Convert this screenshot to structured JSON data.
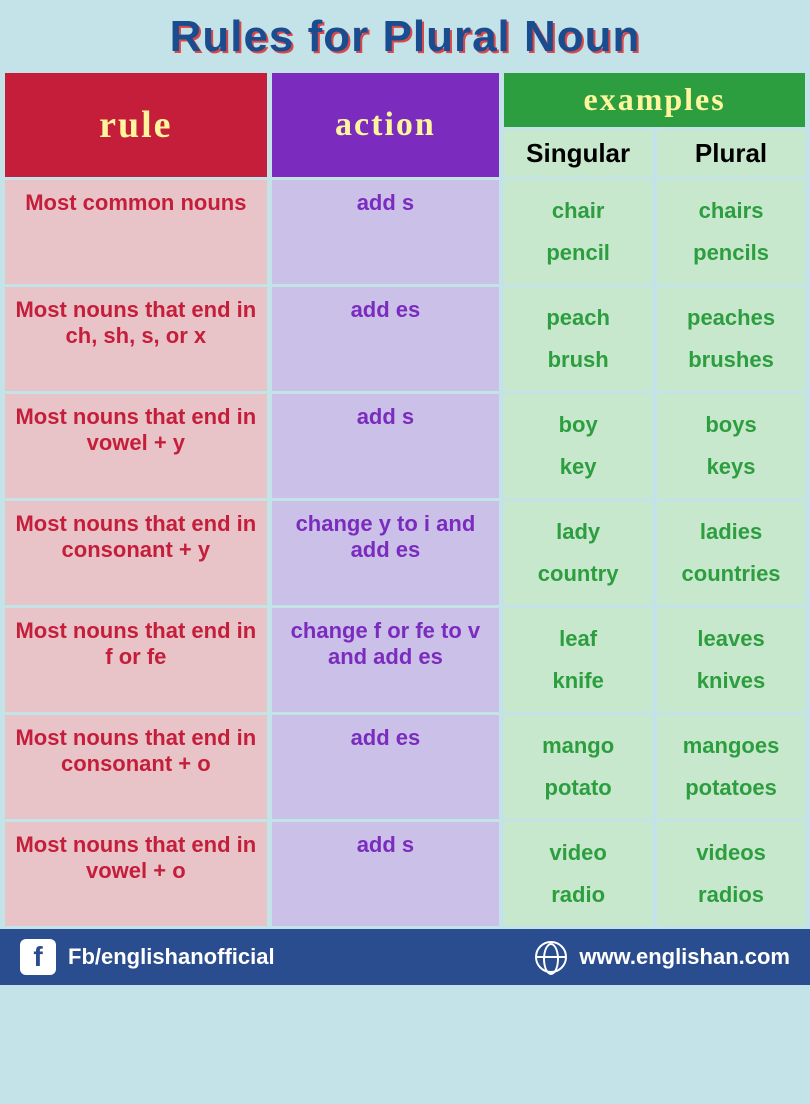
{
  "title": "Rules for Plural Noun",
  "headers": {
    "rule": "rule",
    "action": "action",
    "examples": "examples",
    "singular": "Singular",
    "plural": "Plural"
  },
  "rows": [
    {
      "rule": "Most common nouns",
      "action": "add s",
      "singular": [
        "chair",
        "pencil"
      ],
      "plural": [
        "chairs",
        "pencils"
      ]
    },
    {
      "rule": "Most nouns that end in ch, sh, s, or x",
      "action": "add es",
      "singular": [
        "peach",
        "brush"
      ],
      "plural": [
        "peaches",
        "brushes"
      ]
    },
    {
      "rule": "Most nouns that end in vowel + y",
      "action": "add s",
      "singular": [
        "boy",
        "key"
      ],
      "plural": [
        "boys",
        "keys"
      ]
    },
    {
      "rule": "Most nouns that end in consonant + y",
      "action": "change y to i and add es",
      "singular": [
        "lady",
        "country"
      ],
      "plural": [
        "ladies",
        "countries"
      ]
    },
    {
      "rule": "Most nouns that end in f or fe",
      "action": "change f or fe to v and add es",
      "singular": [
        "leaf",
        "knife"
      ],
      "plural": [
        "leaves",
        "knives"
      ]
    },
    {
      "rule": "Most nouns that end in consonant + o",
      "action": "add es",
      "singular": [
        "mango",
        "potato"
      ],
      "plural": [
        "mangoes",
        "potatoes"
      ]
    },
    {
      "rule": "Most nouns that end in vowel + o",
      "action": "add s",
      "singular": [
        "video",
        "radio"
      ],
      "plural": [
        "videos",
        "radios"
      ]
    }
  ],
  "footer": {
    "fb": "Fb/englishanofficial",
    "web": "www.englishan.com"
  },
  "colors": {
    "page_bg": "#c4e3e8",
    "title_color": "#1a4d8f",
    "title_shadow": "#d94848",
    "rule_header_bg": "#c41e3a",
    "action_header_bg": "#7b2cbf",
    "examples_header_bg": "#2d9e3f",
    "header_text": "#fff59d",
    "rule_cell_bg": "#e8c4c9",
    "rule_text": "#c41e3a",
    "action_cell_bg": "#cbc0e8",
    "action_text": "#7b2cbf",
    "example_cell_bg": "#c7e8cc",
    "example_text": "#2d9e3f",
    "footer_bg": "#2a4d8f"
  }
}
